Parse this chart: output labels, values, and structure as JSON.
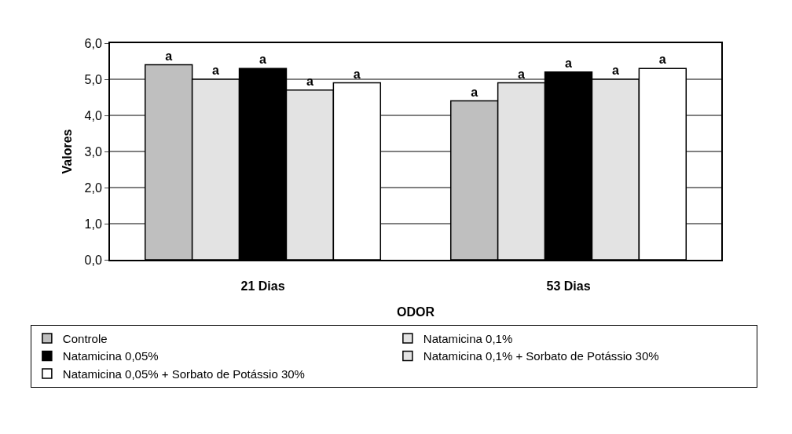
{
  "chart_data": {
    "type": "bar",
    "xlabel": "ODOR",
    "ylabel": "Valores",
    "categories": [
      "21 Dias",
      "53 Dias"
    ],
    "series": [
      {
        "name": "Controle",
        "color": "#bfbfbf",
        "values": [
          5.4,
          4.4
        ],
        "value_labels": [
          "a",
          "a"
        ]
      },
      {
        "name": "Natamicina 0,1%",
        "color": "#e3e3e3",
        "values": [
          5.0,
          4.9
        ],
        "value_labels": [
          "a",
          "a"
        ]
      },
      {
        "name": "Natamicina 0,05%",
        "color": "#000000",
        "values": [
          5.3,
          5.2
        ],
        "value_labels": [
          "a",
          "a"
        ]
      },
      {
        "name": "Natamicina 0,1% + Sorbato de Potássio 30%",
        "color": "#e3e3e3",
        "values": [
          4.7,
          5.0
        ],
        "value_labels": [
          "a",
          "a"
        ]
      },
      {
        "name": "Natamicina 0,05% + Sorbato de Potássio 30%",
        "color": "#ffffff",
        "values": [
          4.9,
          5.3
        ],
        "value_labels": [
          "a",
          "a"
        ]
      }
    ],
    "ylim": [
      0,
      6
    ],
    "yticks": [
      {
        "value": 0,
        "label": "0,0"
      },
      {
        "value": 1,
        "label": "1,0"
      },
      {
        "value": 2,
        "label": "2,0"
      },
      {
        "value": 3,
        "label": "3,0"
      },
      {
        "value": 4,
        "label": "4,0"
      },
      {
        "value": 5,
        "label": "5,0"
      },
      {
        "value": 6,
        "label": "6,0"
      }
    ],
    "grid": "y",
    "legend": "bottom"
  }
}
